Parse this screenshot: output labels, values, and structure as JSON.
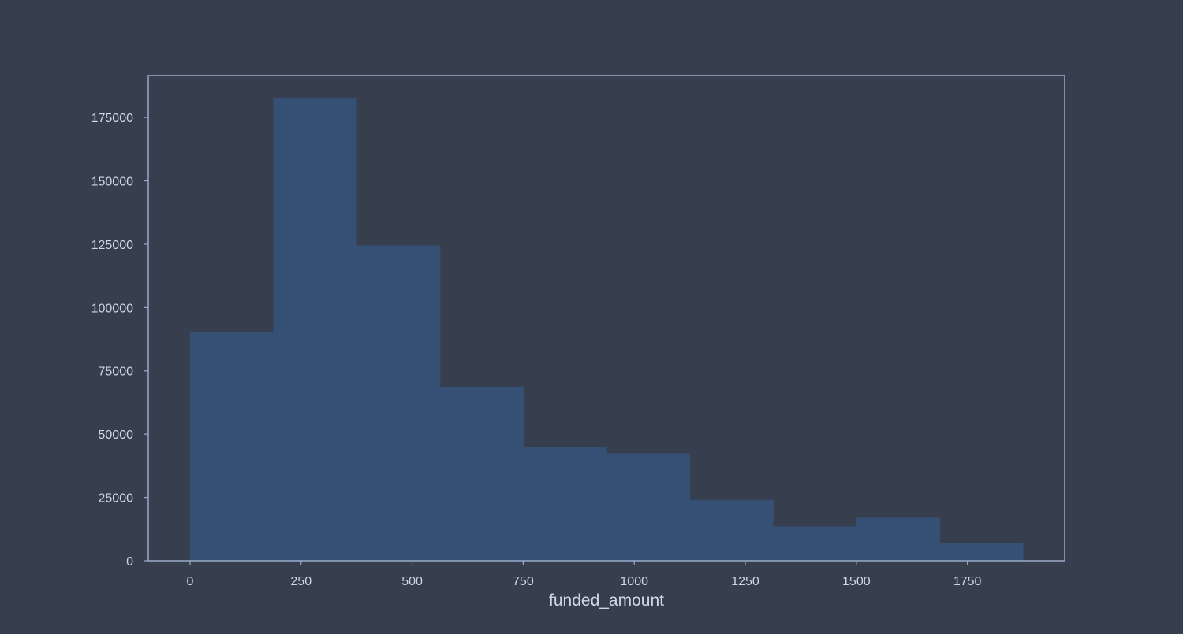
{
  "colors": {
    "background": "#373f4f",
    "bar_fill": "#365075",
    "axis": "#9aaac8",
    "text": "#cfd6e6"
  },
  "chart_data": {
    "type": "histogram",
    "xlabel": "funded_amount",
    "ylabel": "",
    "title": "",
    "xlim": [
      -94,
      1969
    ],
    "ylim": [
      0,
      191500
    ],
    "x_ticks": [
      0,
      250,
      500,
      750,
      1000,
      1250,
      1500,
      1750
    ],
    "y_ticks": [
      0,
      25000,
      50000,
      75000,
      100000,
      125000,
      150000,
      175000
    ],
    "grid": false,
    "bins": [
      {
        "x0": 0,
        "x1": 187.5,
        "count": 90500
      },
      {
        "x0": 187.5,
        "x1": 375,
        "count": 182500
      },
      {
        "x0": 375,
        "x1": 562.5,
        "count": 124500
      },
      {
        "x0": 562.5,
        "x1": 750,
        "count": 68500
      },
      {
        "x0": 750,
        "x1": 937.5,
        "count": 45000
      },
      {
        "x0": 937.5,
        "x1": 1125,
        "count": 42500
      },
      {
        "x0": 1125,
        "x1": 1312.5,
        "count": 24000
      },
      {
        "x0": 1312.5,
        "x1": 1500,
        "count": 13500
      },
      {
        "x0": 1500,
        "x1": 1687.5,
        "count": 17000
      },
      {
        "x0": 1687.5,
        "x1": 1875,
        "count": 7000
      }
    ]
  }
}
